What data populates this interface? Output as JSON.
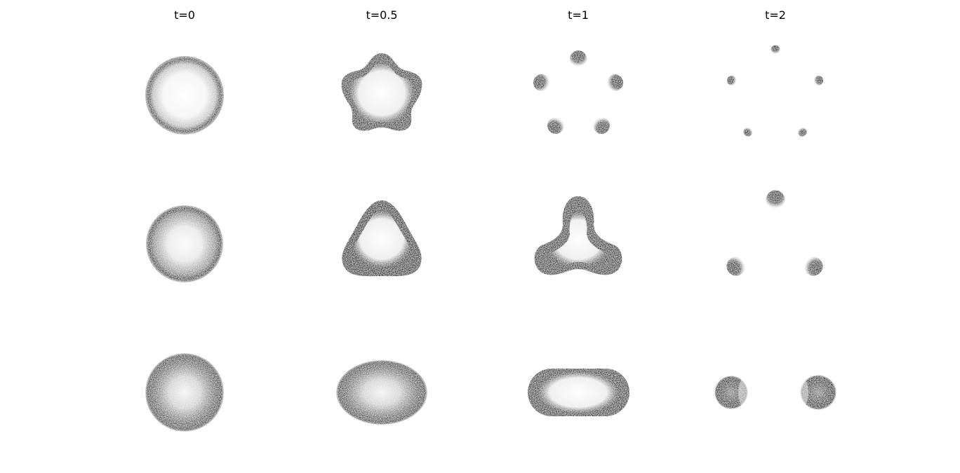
{
  "columns": [
    {
      "label": "t=0"
    },
    {
      "label": "t=0.5"
    },
    {
      "label": "t=1"
    },
    {
      "label": "t=2"
    }
  ],
  "rows": [
    {
      "lobes": 5
    },
    {
      "lobes": 3
    },
    {
      "lobes": 2
    }
  ],
  "colors": {
    "background": "#ffffff",
    "ink": "#000000"
  }
}
